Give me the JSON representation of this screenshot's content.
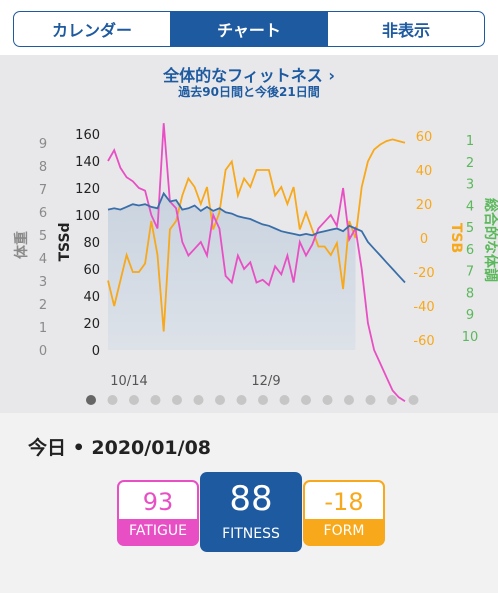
{
  "tabs": [
    {
      "label": "カレンダー",
      "active": false
    },
    {
      "label": "チャート",
      "active": true
    },
    {
      "label": "非表示",
      "active": false
    }
  ],
  "chart_header": {
    "title": "全体的なフィットネス",
    "chevron": "›",
    "subtitle": "過去90日間と今後21日間"
  },
  "chart_data": {
    "type": "line",
    "x_tick_labels": [
      "10/14",
      "12/9"
    ],
    "axes": {
      "weight": {
        "label": "体重",
        "ticks": [
          "0",
          "1",
          "2",
          "3",
          "4",
          "5",
          "6",
          "7",
          "8",
          "9"
        ],
        "color": "#8a8a8a"
      },
      "tss": {
        "label": "TSSd",
        "ticks": [
          "0",
          "20",
          "40",
          "60",
          "80",
          "100",
          "120",
          "140",
          "160"
        ],
        "color": "#222222"
      },
      "tsb": {
        "label": "TSB",
        "ticks": [
          "-60",
          "-40",
          "-20",
          "0",
          "20",
          "40",
          "60"
        ],
        "color": "#f7a81b"
      },
      "wellness": {
        "label": "総合的な体調",
        "ticks": [
          "1",
          "2",
          "3",
          "4",
          "5",
          "6",
          "7",
          "8",
          "9",
          "10"
        ],
        "color": "#5cb85c"
      }
    },
    "series": [
      {
        "name": "FITNESS",
        "color": "#3a6ea8",
        "values": [
          104,
          105,
          104,
          106,
          108,
          107,
          108,
          106,
          105,
          116,
          110,
          111,
          104,
          105,
          107,
          103,
          106,
          103,
          105,
          102,
          101,
          99,
          98,
          97,
          95,
          93,
          92,
          90,
          88,
          87,
          86,
          85,
          86,
          85,
          87,
          88,
          89,
          90,
          88,
          92,
          90,
          88,
          80,
          75,
          70,
          65,
          60,
          55,
          50
        ]
      },
      {
        "name": "FATIGUE",
        "color": "#e84fc4",
        "values": [
          140,
          148,
          135,
          128,
          125,
          120,
          118,
          100,
          90,
          168,
          110,
          105,
          80,
          70,
          75,
          80,
          70,
          100,
          90,
          55,
          50,
          70,
          60,
          65,
          50,
          52,
          48,
          62,
          56,
          70,
          50,
          80,
          70,
          78,
          90,
          95,
          100,
          92,
          120,
          82,
          90,
          60,
          20,
          0,
          -10,
          -20,
          -30,
          -35,
          -38
        ]
      },
      {
        "name": "FORM",
        "color": "#f7a81b",
        "values": [
          -25,
          -40,
          -25,
          -10,
          -20,
          -20,
          -15,
          10,
          -10,
          -55,
          5,
          10,
          25,
          35,
          30,
          20,
          30,
          5,
          15,
          40,
          45,
          25,
          35,
          30,
          40,
          40,
          40,
          25,
          30,
          20,
          30,
          5,
          15,
          5,
          -5,
          -5,
          -10,
          -3,
          -30,
          10,
          0,
          30,
          45,
          52,
          55,
          57,
          58,
          57,
          56
        ]
      }
    ]
  },
  "page_dots": {
    "count": 16,
    "active": 0
  },
  "today": {
    "label": "今日 • 2020/01/08"
  },
  "metrics": {
    "fatigue": {
      "value": "93",
      "label": "FATIGUE"
    },
    "fitness": {
      "value": "88",
      "label": "FITNESS"
    },
    "form": {
      "value": "-18",
      "label": "FORM"
    }
  },
  "colors": {
    "accent": "#1e5aa0",
    "fatigue": "#e84fc4",
    "form": "#f7a81b",
    "wellness": "#5cb85c"
  }
}
